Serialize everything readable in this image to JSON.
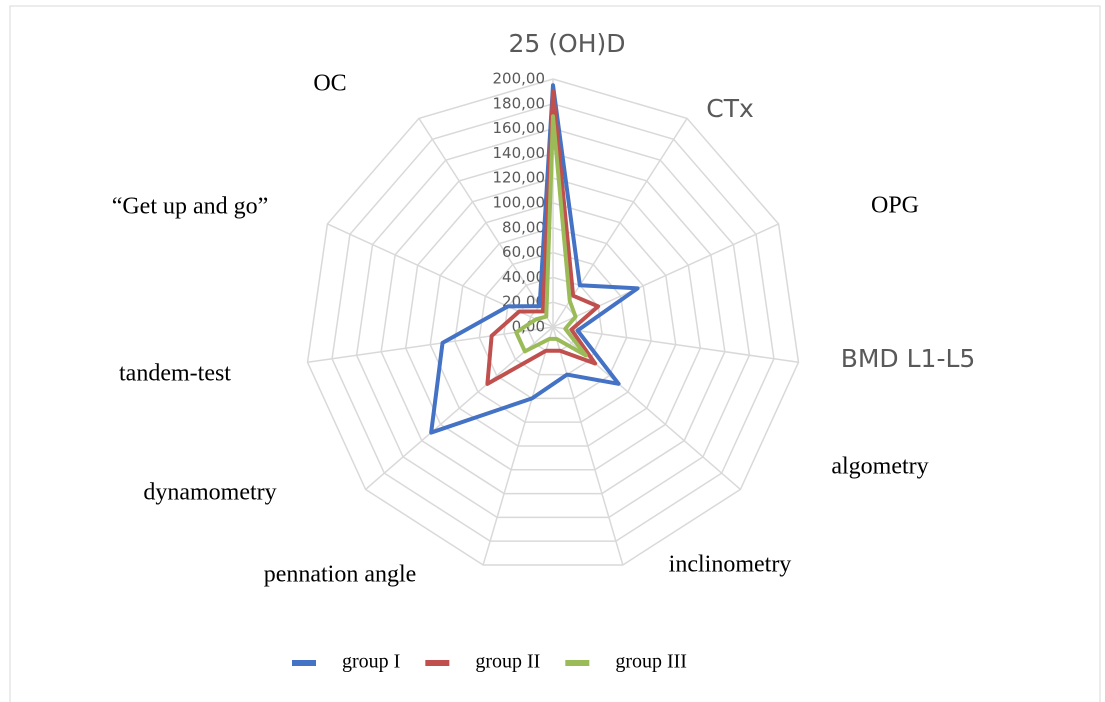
{
  "chart_data": {
    "type": "radar",
    "categories": [
      "25 (OH)D",
      "CTx",
      "OPG",
      "BMD L1-L5",
      "algometry",
      "inclinometry",
      "pennation angle",
      "dynamometry",
      "tandem-test",
      "“Get up and go”",
      "OC"
    ],
    "series": [
      {
        "name": "group I",
        "color": "#4472c4",
        "values": [
          195,
          40,
          75,
          20,
          70,
          40,
          60,
          130,
          90,
          40,
          20
        ]
      },
      {
        "name": "group II",
        "color": "#c0504d",
        "values": [
          190,
          30,
          40,
          15,
          45,
          20,
          20,
          70,
          50,
          30,
          15
        ]
      },
      {
        "name": "group III",
        "color": "#9bbb59",
        "values": [
          170,
          25,
          20,
          10,
          35,
          10,
          10,
          30,
          30,
          15,
          10
        ]
      }
    ],
    "ylim": [
      0,
      200
    ],
    "yticks": [
      {
        "value": 0,
        "label": "0,00"
      },
      {
        "value": 20,
        "label": "20,00"
      },
      {
        "value": 40,
        "label": "40,00"
      },
      {
        "value": 60,
        "label": "60,00"
      },
      {
        "value": 80,
        "label": "80,00"
      },
      {
        "value": 100,
        "label": "100,00"
      },
      {
        "value": 120,
        "label": "120,00"
      },
      {
        "value": 140,
        "label": "140,00"
      },
      {
        "value": 160,
        "label": "160,00"
      },
      {
        "value": 180,
        "label": "180,00"
      },
      {
        "value": 200,
        "label": "200,00"
      }
    ],
    "grid": true
  }
}
